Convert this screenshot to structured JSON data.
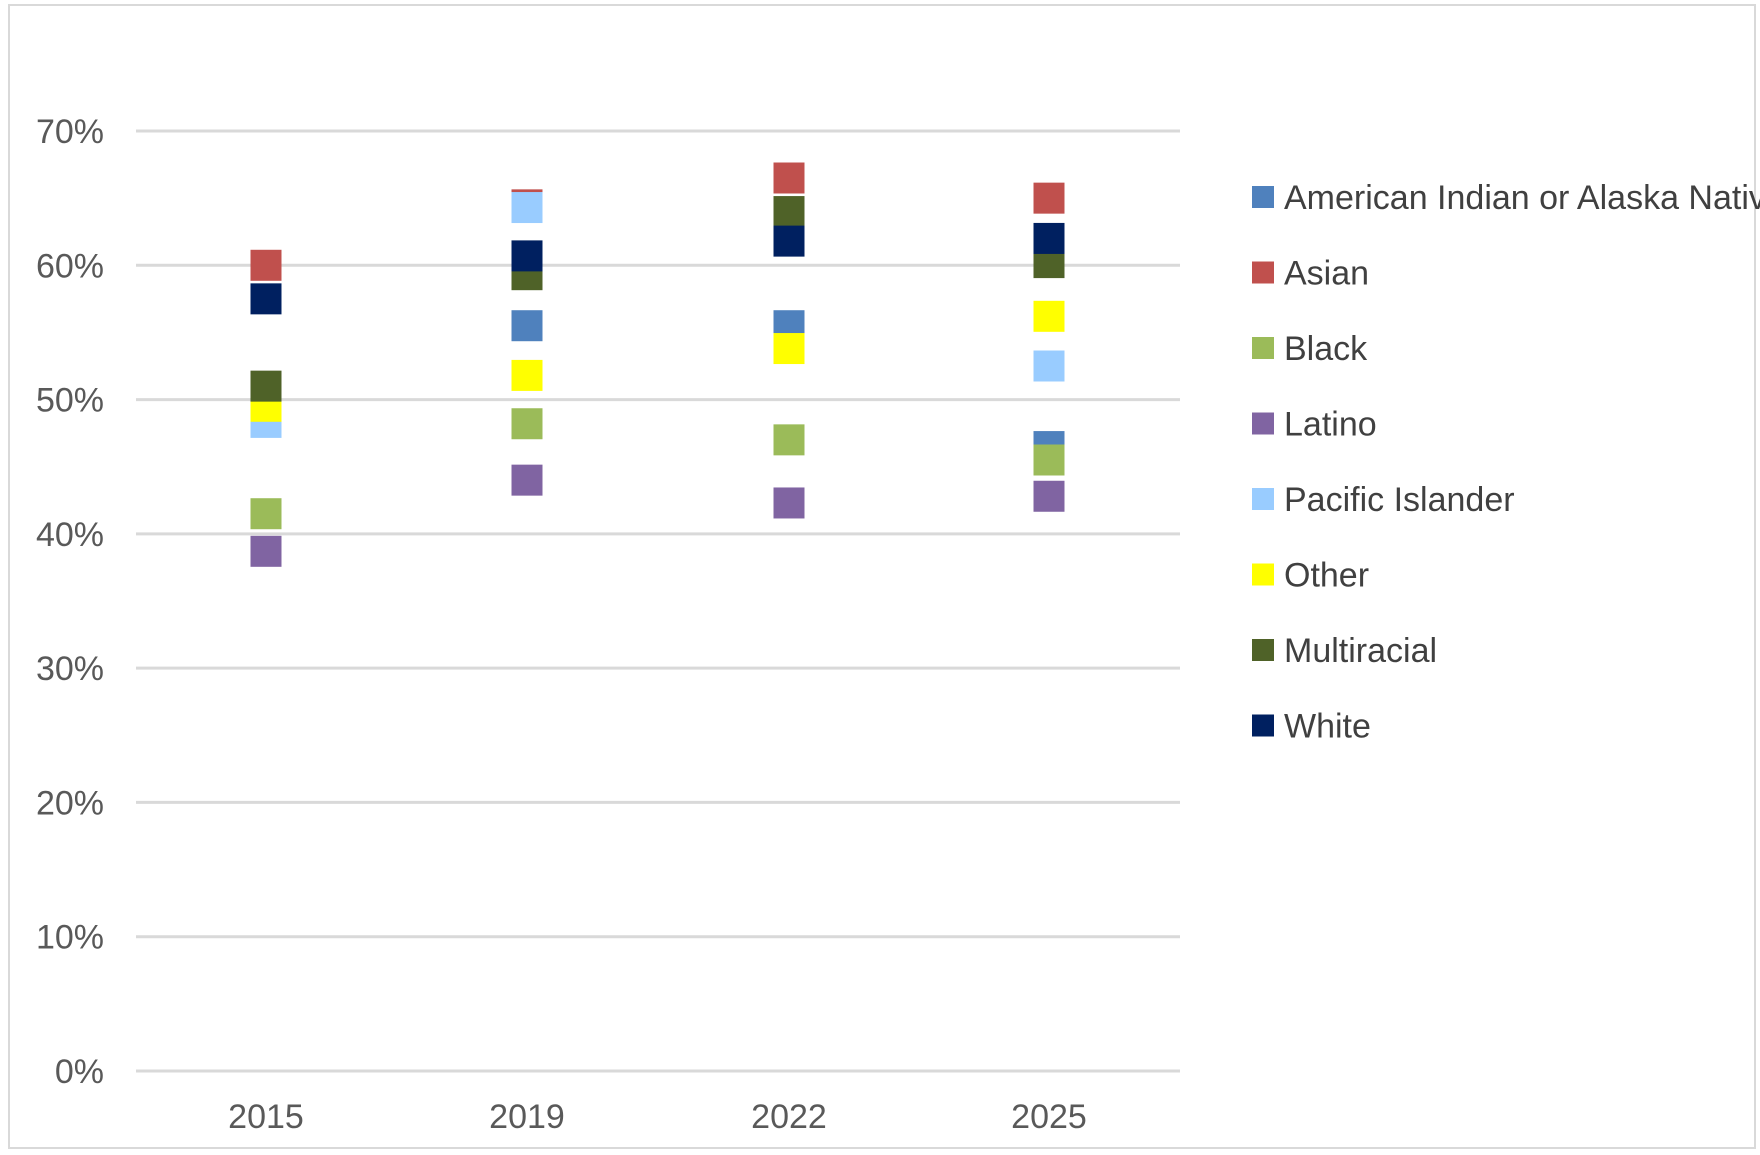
{
  "chart_data": {
    "type": "scatter",
    "categories": [
      "2015",
      "2019",
      "2022",
      "2025"
    ],
    "ylim": [
      0,
      70
    ],
    "y_ticks": [
      "0%",
      "10%",
      "20%",
      "30%",
      "40%",
      "50%",
      "60%",
      "70%"
    ],
    "grid": true,
    "legend_position": "right",
    "series": [
      {
        "name": "American Indian or Alaska Native",
        "color": "#4F81BD",
        "values": [
          48.5,
          55.5,
          55.5,
          46.5
        ]
      },
      {
        "name": "Asian",
        "color": "#C0504D",
        "values": [
          60.0,
          64.5,
          66.5,
          65.0
        ]
      },
      {
        "name": "Black",
        "color": "#9BBB59",
        "values": [
          41.5,
          48.2,
          47.0,
          45.5
        ]
      },
      {
        "name": "Latino",
        "color": "#8064A2",
        "values": [
          38.7,
          44.0,
          42.3,
          42.8
        ]
      },
      {
        "name": "Pacific Islander",
        "color": "#99CCFF",
        "values": [
          48.3,
          64.3,
          null,
          52.5
        ]
      },
      {
        "name": "Other",
        "color": "#FFFF00",
        "values": [
          49.5,
          51.8,
          53.8,
          56.2
        ]
      },
      {
        "name": "Multiracial",
        "color": "#4F6228",
        "values": [
          51.0,
          59.3,
          64.0,
          60.2
        ]
      },
      {
        "name": "White",
        "color": "#002060",
        "values": [
          57.5,
          60.7,
          61.8,
          62.0
        ]
      }
    ]
  }
}
